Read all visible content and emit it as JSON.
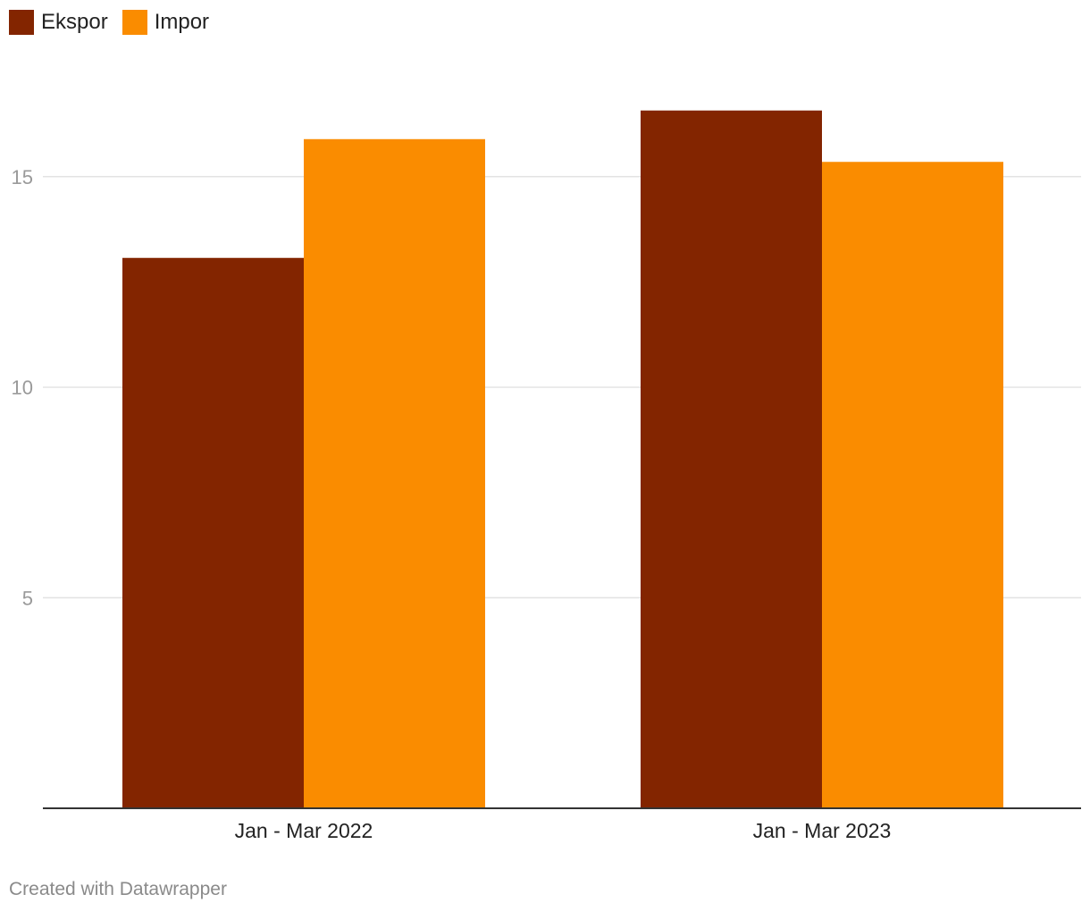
{
  "legend": {
    "items": [
      {
        "label": "Ekspor",
        "color": "#832500"
      },
      {
        "label": "Impor",
        "color": "#fa8c00"
      }
    ]
  },
  "footer": {
    "credit": "Created with Datawrapper"
  },
  "chart_data": {
    "type": "bar",
    "categories": [
      "Jan - Mar 2022",
      "Jan - Mar 2023"
    ],
    "series": [
      {
        "name": "Ekspor",
        "color": "#832500",
        "values": [
          13.07,
          16.57
        ]
      },
      {
        "name": "Impor",
        "color": "#fa8c00",
        "values": [
          15.89,
          15.35
        ]
      }
    ],
    "yticks": [
      5,
      10,
      15
    ],
    "ylim": [
      0,
      18
    ],
    "grid": true,
    "legend_position": "top-left",
    "title": "",
    "xlabel": "",
    "ylabel": ""
  }
}
